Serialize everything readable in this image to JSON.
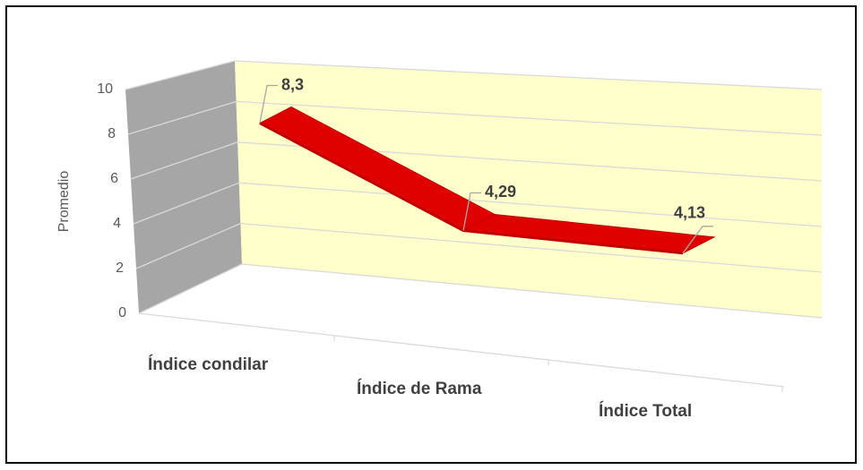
{
  "chart_data": {
    "type": "line3d",
    "categories": [
      "Índice condilar",
      "Índice de Rama",
      "Índice Total"
    ],
    "values": [
      8.3,
      4.29,
      4.13
    ],
    "value_labels": [
      "8,3",
      "4,29",
      "4,13"
    ],
    "color": "#c00000",
    "ylabel": "Promedio",
    "ylim": [
      0,
      10
    ],
    "yticks": [
      0,
      2,
      4,
      6,
      8,
      10
    ],
    "grid": true
  }
}
